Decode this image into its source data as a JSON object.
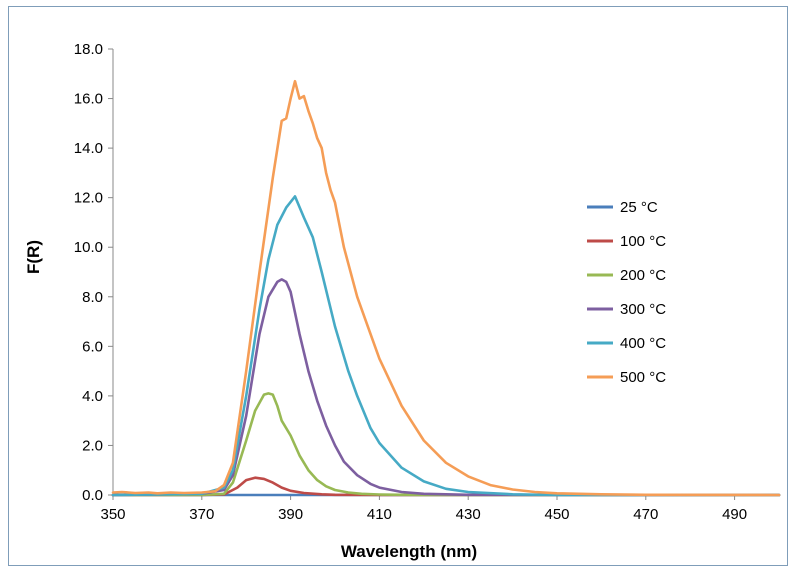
{
  "chart_data": {
    "type": "line",
    "title": "",
    "xlabel": "Wavelength (nm)",
    "ylabel": "F(R)",
    "xlim": [
      350,
      500
    ],
    "ylim": [
      0,
      18
    ],
    "x_ticks": [
      "350",
      "370",
      "390",
      "410",
      "430",
      "450",
      "470",
      "490"
    ],
    "y_ticks": [
      "0.0",
      "2.0",
      "4.0",
      "6.0",
      "8.0",
      "10.0",
      "12.0",
      "14.0",
      "16.0",
      "18.0"
    ],
    "grid": false,
    "legend_position": "right",
    "series": [
      {
        "name": "25 °C",
        "color": "#4a7ebb",
        "x": [
          350,
          380,
          400,
          450,
          500
        ],
        "y": [
          0,
          0,
          0,
          0,
          0
        ]
      },
      {
        "name": "100 °C",
        "color": "#be4b48",
        "x": [
          350,
          370,
          375,
          378,
          380,
          382,
          384,
          386,
          388,
          390,
          393,
          397,
          400,
          410,
          500
        ],
        "y": [
          0,
          0,
          0.02,
          0.3,
          0.6,
          0.7,
          0.65,
          0.5,
          0.3,
          0.17,
          0.08,
          0.03,
          0.01,
          0,
          0
        ]
      },
      {
        "name": "200 °C",
        "color": "#98b954",
        "x": [
          350,
          370,
          375,
          377,
          380,
          382,
          384,
          385,
          386,
          387,
          388,
          390,
          392,
          394,
          396,
          398,
          400,
          403,
          406,
          410,
          420,
          500
        ],
        "y": [
          0,
          0,
          0.05,
          0.5,
          2.2,
          3.4,
          4.05,
          4.1,
          4.05,
          3.6,
          3.0,
          2.4,
          1.6,
          1.0,
          0.6,
          0.35,
          0.2,
          0.1,
          0.05,
          0.02,
          0,
          0
        ]
      },
      {
        "name": "300 °C",
        "color": "#7d5fa0",
        "x": [
          350,
          370,
          375,
          377,
          380,
          383,
          385,
          387,
          388,
          389,
          390,
          392,
          394,
          396,
          398,
          400,
          402,
          405,
          408,
          410,
          415,
          420,
          430,
          500
        ],
        "y": [
          0,
          0.05,
          0.2,
          0.8,
          3.2,
          6.5,
          8.0,
          8.6,
          8.7,
          8.6,
          8.2,
          6.5,
          5.0,
          3.8,
          2.8,
          2.0,
          1.35,
          0.8,
          0.45,
          0.3,
          0.12,
          0.05,
          0.01,
          0
        ]
      },
      {
        "name": "400 °C",
        "color": "#46aac5",
        "x": [
          350,
          370,
          375,
          377,
          380,
          383,
          385,
          387,
          389,
          391,
          393,
          395,
          397,
          400,
          403,
          405,
          408,
          410,
          415,
          420,
          425,
          430,
          440,
          450,
          500
        ],
        "y": [
          0,
          0.05,
          0.3,
          1.0,
          4.0,
          7.5,
          9.5,
          10.9,
          11.6,
          12.05,
          11.2,
          10.4,
          9.0,
          6.8,
          5.0,
          4.0,
          2.7,
          2.1,
          1.1,
          0.55,
          0.25,
          0.12,
          0.03,
          0,
          0
        ]
      },
      {
        "name": "500 °C",
        "color": "#f59d56",
        "x": [
          350,
          352,
          355,
          358,
          360,
          363,
          366,
          370,
          373,
          375,
          377,
          380,
          383,
          386,
          388,
          389,
          390,
          391,
          392,
          393,
          394,
          395,
          396,
          397,
          398,
          399,
          400,
          402,
          405,
          408,
          410,
          415,
          420,
          425,
          430,
          435,
          440,
          445,
          450,
          460,
          470,
          500
        ],
        "y": [
          0.1,
          0.12,
          0.08,
          0.1,
          0.07,
          0.1,
          0.08,
          0.1,
          0.15,
          0.4,
          1.3,
          5.0,
          9.0,
          12.8,
          15.1,
          15.2,
          16.0,
          16.7,
          16.0,
          16.1,
          15.5,
          15.0,
          14.4,
          14.0,
          13.0,
          12.3,
          11.8,
          10.0,
          8.0,
          6.5,
          5.5,
          3.6,
          2.2,
          1.3,
          0.75,
          0.4,
          0.22,
          0.12,
          0.07,
          0.03,
          0.01,
          0
        ]
      }
    ]
  }
}
